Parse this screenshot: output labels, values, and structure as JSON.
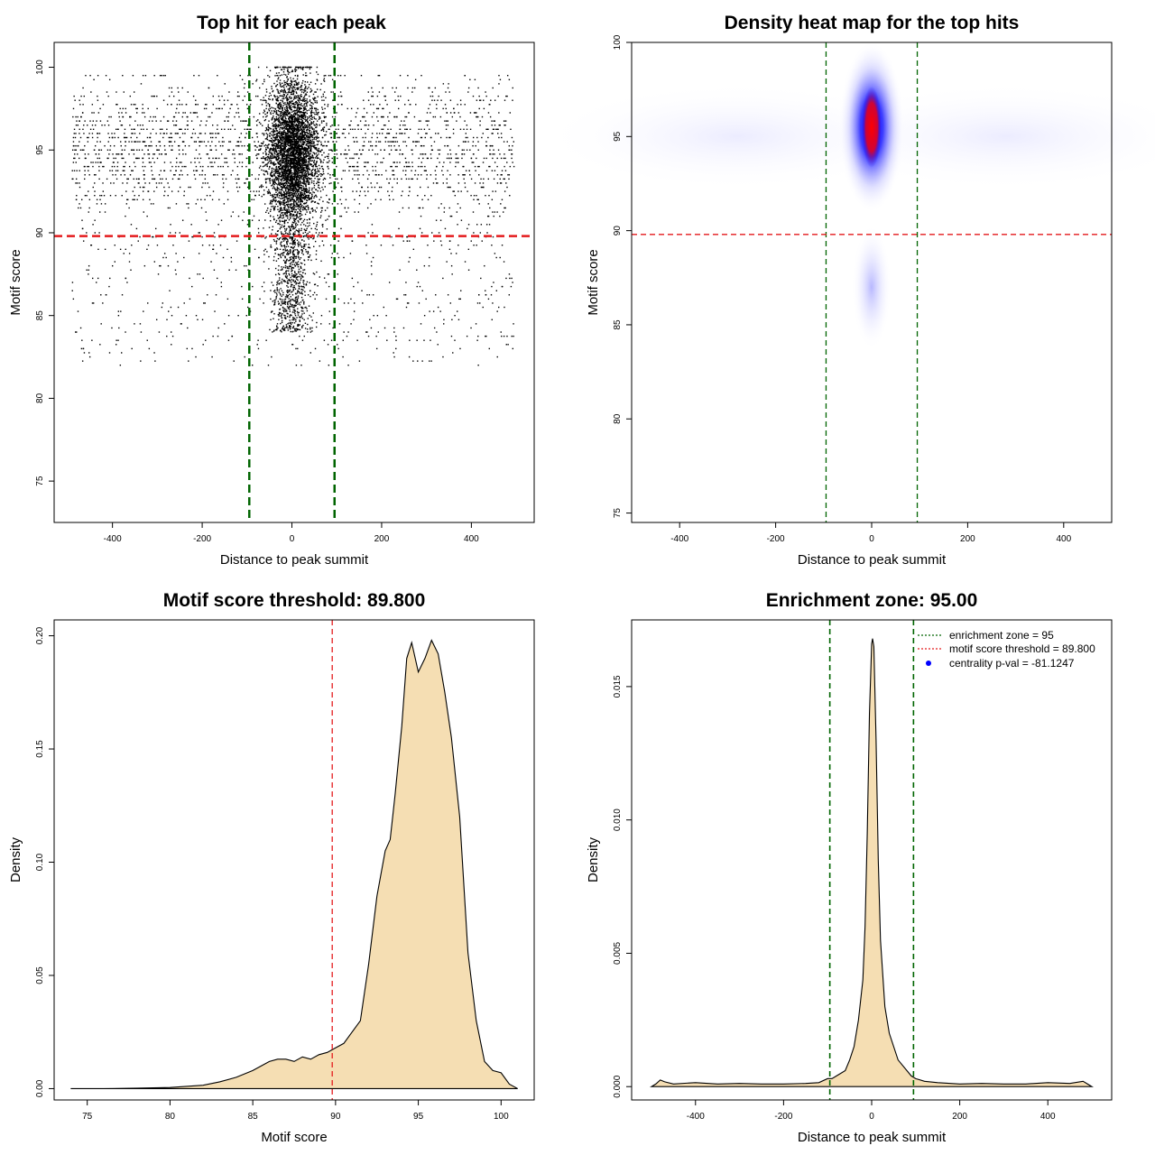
{
  "chart_data": [
    {
      "type": "scatter",
      "title": "Top hit for each peak",
      "xlabel": "Distance to peak summit",
      "ylabel": "Motif score",
      "xlim": [
        -530,
        540
      ],
      "ylim": [
        72.5,
        101.5
      ],
      "xticks": [
        -400,
        -200,
        0,
        200,
        400
      ],
      "yticks": [
        75,
        80,
        85,
        90,
        95,
        100
      ],
      "vlines": [
        -95,
        95
      ],
      "vline_color": "#006400",
      "hline": 89.8,
      "hline_color": "#e41a1c",
      "point_clusters": [
        {
          "name": "background",
          "x_range": [
            -490,
            495
          ],
          "score_center": 95,
          "score_sd": 2.2
        },
        {
          "name": "central",
          "x_center": 2,
          "x_sd": 28,
          "score_center": 94.8,
          "score_sd": 2.2
        },
        {
          "name": "central tail",
          "x_center": 0,
          "x_sd": 22,
          "score_range": [
            84,
            90
          ]
        }
      ],
      "grid": false
    },
    {
      "type": "heatmap",
      "title": "Density heat map for the top hits",
      "xlabel": "Distance to peak summit",
      "ylabel": "Motif score",
      "xlim": [
        -500,
        500
      ],
      "ylim": [
        74.5,
        100
      ],
      "xticks": [
        -400,
        -200,
        0,
        200,
        400
      ],
      "yticks": [
        75,
        80,
        85,
        90,
        95,
        100
      ],
      "vlines": [
        -95,
        95
      ],
      "vline_color": "#006400",
      "hline": 89.8,
      "hline_color": "#e41a1c",
      "peak": {
        "x": 0,
        "y": 95.5
      },
      "colors": [
        "#ffffff",
        "#0000ff",
        "#ff0000"
      ]
    },
    {
      "type": "area",
      "title": "Motif score threshold: 89.800",
      "xlabel": "Motif score",
      "ylabel": "Density",
      "xlim": [
        73,
        102
      ],
      "ylim": [
        -0.005,
        0.207
      ],
      "xticks": [
        75,
        80,
        85,
        90,
        95,
        100
      ],
      "yticks": [
        0.0,
        0.05,
        0.1,
        0.15,
        0.2
      ],
      "ytick_labels": [
        "0.00",
        "0.05",
        "0.10",
        "0.15",
        "0.20"
      ],
      "vline": 89.8,
      "vline_color": "#e41a1c",
      "fill": "#f5deb3",
      "x": [
        74,
        76,
        78,
        80,
        81,
        82,
        83,
        84,
        85,
        85.5,
        86,
        86.5,
        87,
        87.5,
        88,
        88.5,
        89,
        89.5,
        90,
        90.5,
        91,
        91.5,
        92,
        92.5,
        93,
        93.3,
        93.6,
        94,
        94.3,
        94.6,
        95,
        95.4,
        95.8,
        96.2,
        96.6,
        97,
        97.5,
        98,
        98.5,
        99,
        99.5,
        100,
        100.5,
        101
      ],
      "y": [
        0.0,
        0.0,
        0.0002,
        0.0005,
        0.001,
        0.0015,
        0.003,
        0.005,
        0.008,
        0.01,
        0.012,
        0.013,
        0.013,
        0.012,
        0.014,
        0.013,
        0.015,
        0.016,
        0.018,
        0.02,
        0.025,
        0.03,
        0.055,
        0.085,
        0.105,
        0.11,
        0.13,
        0.16,
        0.19,
        0.197,
        0.184,
        0.19,
        0.198,
        0.192,
        0.175,
        0.155,
        0.12,
        0.06,
        0.03,
        0.012,
        0.008,
        0.007,
        0.002,
        0.0
      ]
    },
    {
      "type": "area",
      "title": "Enrichment zone: 95.00",
      "xlabel": "Distance to peak summit",
      "ylabel": "Density",
      "xlim": [
        -545,
        545
      ],
      "ylim": [
        -0.0005,
        0.0175
      ],
      "xticks": [
        -400,
        -200,
        0,
        200,
        400
      ],
      "yticks": [
        0.0,
        0.005,
        0.01,
        0.015
      ],
      "ytick_labels": [
        "0.000",
        "0.005",
        "0.010",
        "0.015"
      ],
      "vlines": [
        -95,
        95
      ],
      "vline_color": "#006400",
      "fill": "#f5deb3",
      "x": [
        -500,
        -490,
        -480,
        -470,
        -450,
        -400,
        -350,
        -300,
        -250,
        -200,
        -150,
        -120,
        -100,
        -90,
        -80,
        -60,
        -50,
        -40,
        -30,
        -20,
        -15,
        -10,
        -5,
        0,
        2,
        5,
        10,
        15,
        20,
        30,
        40,
        50,
        60,
        80,
        90,
        100,
        120,
        150,
        200,
        250,
        300,
        350,
        400,
        450,
        480,
        490,
        500
      ],
      "y": [
        0.0,
        0.0001,
        0.00025,
        0.00018,
        0.0001,
        0.00015,
        0.0001,
        0.00012,
        0.0001,
        0.0001,
        0.00012,
        0.00015,
        0.0003,
        0.0003,
        0.0004,
        0.0006,
        0.001,
        0.0015,
        0.0025,
        0.004,
        0.006,
        0.0095,
        0.014,
        0.0166,
        0.0168,
        0.0165,
        0.013,
        0.0085,
        0.0055,
        0.003,
        0.002,
        0.0015,
        0.001,
        0.0006,
        0.0004,
        0.0003,
        0.0002,
        0.00015,
        0.0001,
        0.00012,
        0.0001,
        0.0001,
        0.00015,
        0.00012,
        0.0002,
        0.0001,
        0.0
      ],
      "legend": {
        "position": "top-right",
        "entries": [
          {
            "label": "enrichment zone = 95",
            "color": "#006400",
            "style": "dotted"
          },
          {
            "label": "motif score threshold = 89.800",
            "color": "#e41a1c",
            "style": "dotted"
          },
          {
            "label": "centrality p-val = -81.1247",
            "color": "#0000ff",
            "style": "point"
          }
        ]
      }
    }
  ]
}
